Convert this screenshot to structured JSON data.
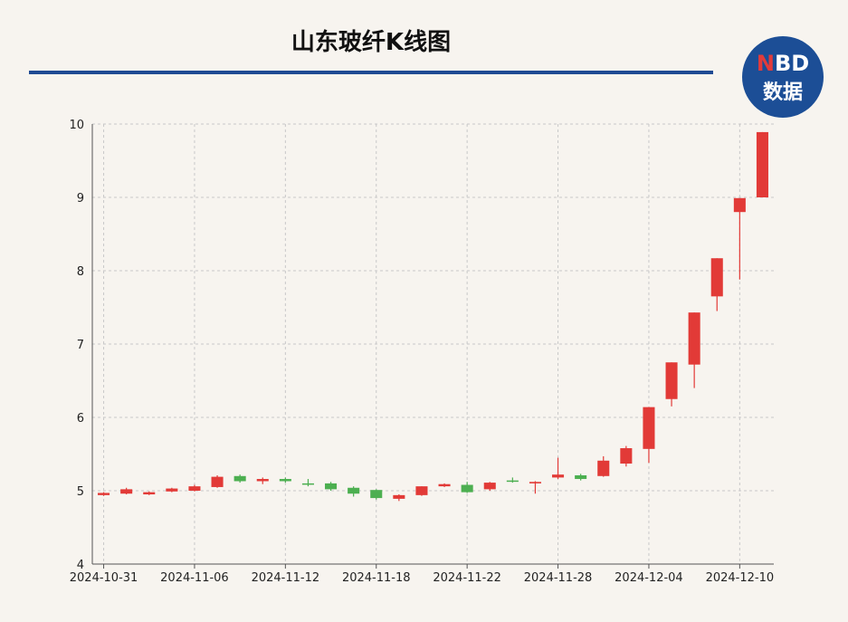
{
  "header": {
    "title": "山东玻纤K线图",
    "logo_top": "NBD",
    "logo_bottom": "数据"
  },
  "colors": {
    "up": "#e23a37",
    "down": "#4caf50",
    "accent": "#1f4a93",
    "background": "#f7f4ef",
    "grid": "#c8c8c8"
  },
  "chart_data": {
    "type": "candlestick",
    "title": "山东玻纤K线图",
    "ylim": [
      4,
      10
    ],
    "yticks": [
      4,
      5,
      6,
      7,
      8,
      9,
      10
    ],
    "xticks": [
      "2024-10-31",
      "2024-11-06",
      "2024-11-12",
      "2024-11-18",
      "2024-11-22",
      "2024-11-28",
      "2024-12-04",
      "2024-12-10"
    ],
    "grid": true,
    "candles": [
      {
        "date": "2024-10-31",
        "open": 4.94,
        "high": 4.98,
        "low": 4.93,
        "close": 4.97
      },
      {
        "date": "2024-11-01",
        "open": 4.96,
        "high": 5.04,
        "low": 4.95,
        "close": 5.02
      },
      {
        "date": "2024-11-04",
        "open": 4.95,
        "high": 4.99,
        "low": 4.94,
        "close": 4.98
      },
      {
        "date": "2024-11-05",
        "open": 4.99,
        "high": 5.04,
        "low": 4.98,
        "close": 5.03
      },
      {
        "date": "2024-11-06",
        "open": 5.0,
        "high": 5.08,
        "low": 4.99,
        "close": 5.06
      },
      {
        "date": "2024-11-07",
        "open": 5.05,
        "high": 5.21,
        "low": 5.04,
        "close": 5.19
      },
      {
        "date": "2024-11-08",
        "open": 5.2,
        "high": 5.22,
        "low": 5.11,
        "close": 5.13
      },
      {
        "date": "2024-11-11",
        "open": 5.13,
        "high": 5.18,
        "low": 5.09,
        "close": 5.16
      },
      {
        "date": "2024-11-12",
        "open": 5.16,
        "high": 5.18,
        "low": 5.11,
        "close": 5.13
      },
      {
        "date": "2024-11-13",
        "open": 5.1,
        "high": 5.16,
        "low": 5.06,
        "close": 5.09
      },
      {
        "date": "2024-11-14",
        "open": 5.1,
        "high": 5.12,
        "low": 5.0,
        "close": 5.02
      },
      {
        "date": "2024-11-15",
        "open": 5.04,
        "high": 5.06,
        "low": 4.92,
        "close": 4.96
      },
      {
        "date": "2024-11-18",
        "open": 5.01,
        "high": 5.02,
        "low": 4.88,
        "close": 4.9
      },
      {
        "date": "2024-11-19",
        "open": 4.89,
        "high": 4.95,
        "low": 4.86,
        "close": 4.94
      },
      {
        "date": "2024-11-20",
        "open": 4.94,
        "high": 5.06,
        "low": 4.93,
        "close": 5.06
      },
      {
        "date": "2024-11-21",
        "open": 5.06,
        "high": 5.1,
        "low": 5.05,
        "close": 5.09
      },
      {
        "date": "2024-11-22",
        "open": 5.08,
        "high": 5.12,
        "low": 4.97,
        "close": 4.98
      },
      {
        "date": "2024-11-25",
        "open": 5.02,
        "high": 5.12,
        "low": 5.0,
        "close": 5.11
      },
      {
        "date": "2024-11-26",
        "open": 5.14,
        "high": 5.18,
        "low": 5.11,
        "close": 5.13
      },
      {
        "date": "2024-11-27",
        "open": 5.1,
        "high": 5.13,
        "low": 4.96,
        "close": 5.12
      },
      {
        "date": "2024-11-28",
        "open": 5.18,
        "high": 5.45,
        "low": 5.16,
        "close": 5.22
      },
      {
        "date": "2024-11-29",
        "open": 5.21,
        "high": 5.23,
        "low": 5.14,
        "close": 5.16
      },
      {
        "date": "2024-12-02",
        "open": 5.2,
        "high": 5.47,
        "low": 5.19,
        "close": 5.41
      },
      {
        "date": "2024-12-03",
        "open": 5.37,
        "high": 5.61,
        "low": 5.33,
        "close": 5.58
      },
      {
        "date": "2024-12-04",
        "open": 5.57,
        "high": 6.14,
        "low": 5.38,
        "close": 6.14
      },
      {
        "date": "2024-12-05",
        "open": 6.25,
        "high": 6.75,
        "low": 6.15,
        "close": 6.75
      },
      {
        "date": "2024-12-06",
        "open": 6.72,
        "high": 7.43,
        "low": 6.4,
        "close": 7.43
      },
      {
        "date": "2024-12-09",
        "open": 7.65,
        "high": 8.17,
        "low": 7.45,
        "close": 8.17
      },
      {
        "date": "2024-12-10",
        "open": 8.8,
        "high": 8.99,
        "low": 7.88,
        "close": 8.99
      },
      {
        "date": "2024-12-11",
        "open": 9.0,
        "high": 9.89,
        "low": 9.0,
        "close": 9.89
      }
    ]
  }
}
